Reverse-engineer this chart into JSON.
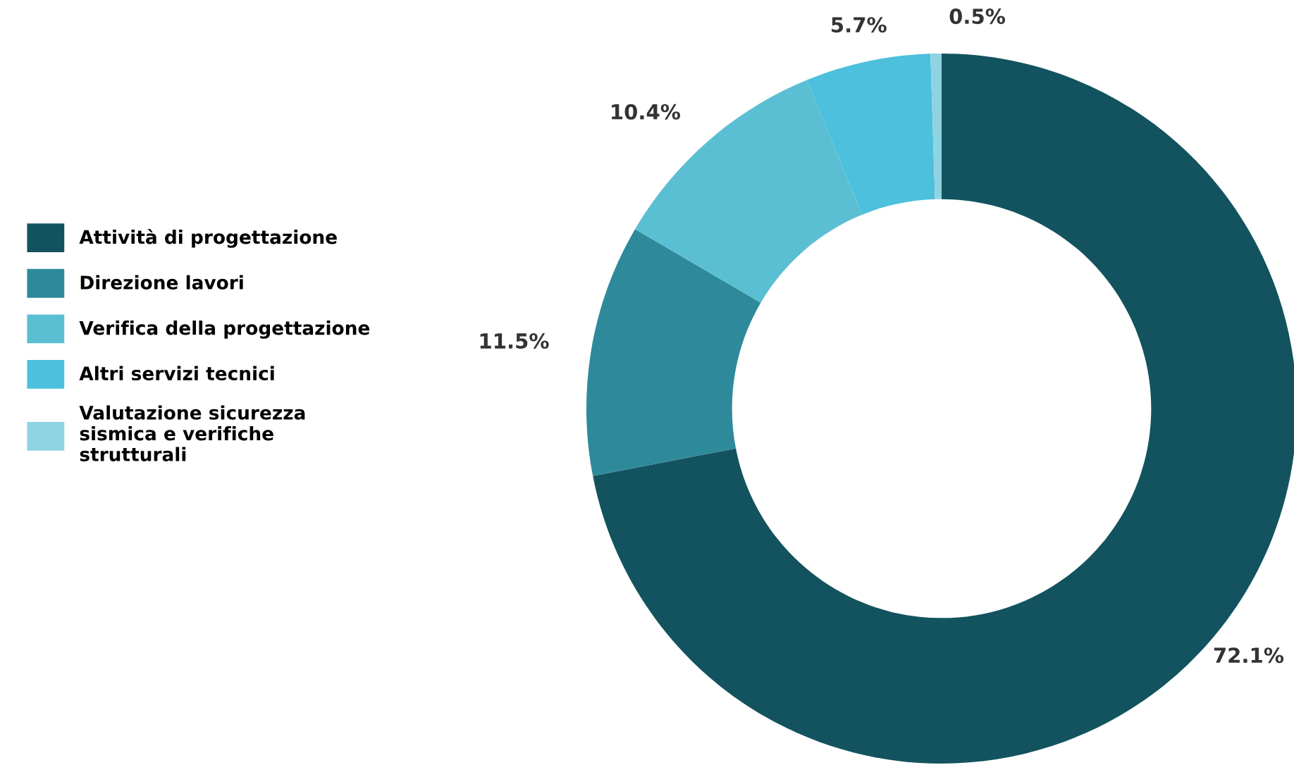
{
  "chart_data": {
    "type": "donut",
    "categories": [
      "Attività di progettazione",
      "Direzione lavori",
      "Verifica della progettazione",
      "Altri servizi tecnici",
      "Valutazione sicurezza\nsismica e verifiche\nstrutturali"
    ],
    "values": [
      72.1,
      11.5,
      10.4,
      5.7,
      0.5
    ],
    "colors": [
      "#12535f",
      "#2e8a9a",
      "#5bbfd3",
      "#4cc0dc",
      "#8fd3e3"
    ],
    "value_labels": [
      "72.1%",
      "11.5%",
      "10.4%",
      "5.7%",
      "0.5%"
    ],
    "legend": "left"
  }
}
